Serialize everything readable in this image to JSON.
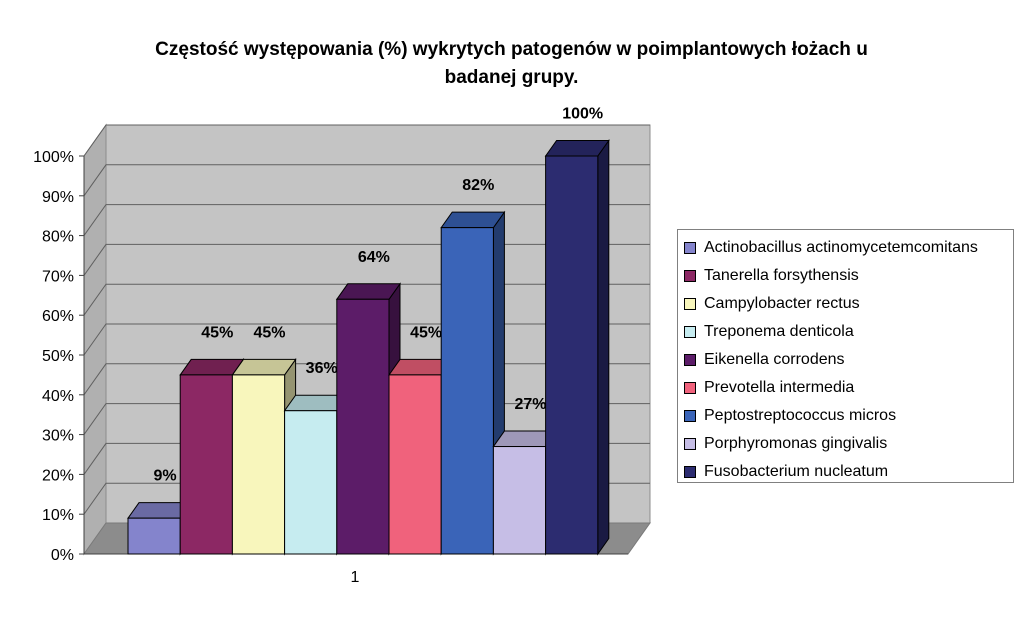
{
  "chart_data": {
    "type": "bar",
    "title_lines": [
      "Częstość występowania (%) wykrytych patogenów w poimplantowych łożach u",
      "badanej grupy."
    ],
    "categories": [
      "1"
    ],
    "series": [
      {
        "name": "Actinobacillus actinomycetemcomitans",
        "values": [
          9
        ],
        "label": "9%",
        "color": "#8484cc"
      },
      {
        "name": "Tanerella forsythensis",
        "values": [
          45
        ],
        "label": "45%",
        "color": "#8c2864"
      },
      {
        "name": "Campylobacter rectus",
        "values": [
          45
        ],
        "label": "45%",
        "color": "#f8f6bc"
      },
      {
        "name": "Treponema denticola",
        "values": [
          36
        ],
        "label": "36%",
        "color": "#c6ecf0"
      },
      {
        "name": "Eikenella corrodens",
        "values": [
          64
        ],
        "label": "64%",
        "color": "#5c1c68"
      },
      {
        "name": "Prevotella intermedia",
        "values": [
          45
        ],
        "label": "45%",
        "color": "#f0627c"
      },
      {
        "name": "Peptostreptococcus micros",
        "values": [
          82
        ],
        "label": "82%",
        "color": "#3a64b8"
      },
      {
        "name": "Porphyromonas gingivalis",
        "values": [
          27
        ],
        "label": "27%",
        "color": "#c6bee6"
      },
      {
        "name": "Fusobacterium nucleatum",
        "values": [
          100
        ],
        "label": "100%",
        "color": "#2c2c70"
      }
    ],
    "yticks": [
      "0%",
      "10%",
      "20%",
      "30%",
      "40%",
      "50%",
      "60%",
      "70%",
      "80%",
      "90%",
      "100%"
    ],
    "ylim": [
      0,
      100
    ],
    "grid": true,
    "legend_position": "right"
  }
}
